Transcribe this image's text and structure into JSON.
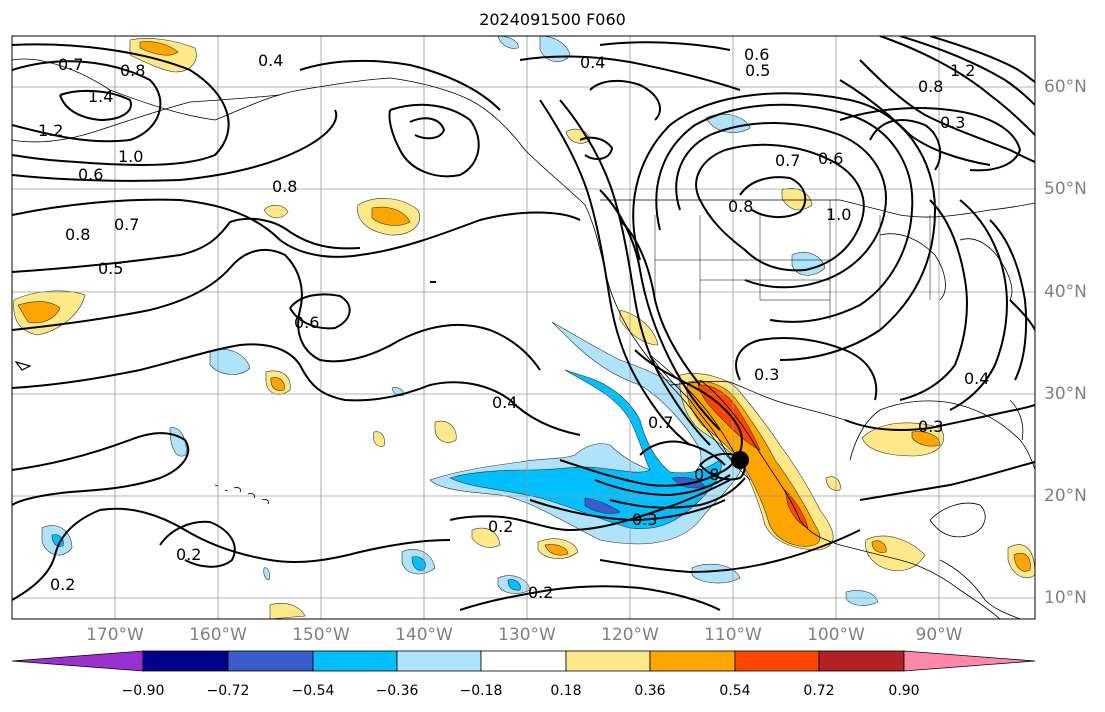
{
  "title": "2024091500 F060",
  "map": {
    "lon_labels": [
      "170°W",
      "160°W",
      "150°W",
      "140°W",
      "130°W",
      "120°W",
      "110°W",
      "100°W",
      "90°W"
    ],
    "lat_labels": [
      "60°N",
      "50°N",
      "40°N",
      "30°N",
      "20°N",
      "10°N"
    ],
    "contour_labels": [
      "0.7",
      "0.8",
      "1.4",
      "1.2",
      "1.0",
      "0.6",
      "0.8",
      "0.7",
      "0.5",
      "0.4",
      "0.8",
      "0.6",
      "0.4",
      "0.5",
      "0.6",
      "0.7",
      "0.8",
      "1.0",
      "1.2",
      "0.8",
      "0.6",
      "0.3",
      "0.4",
      "0.7",
      "0.8",
      "0.3",
      "0.2",
      "0.2",
      "0.2",
      "0.3",
      "0.4",
      "0.3",
      "0.2"
    ],
    "marker": "storm center point"
  },
  "colorbar": {
    "ticks": [
      "−0.90",
      "−0.72",
      "−0.54",
      "−0.36",
      "−0.18",
      "0.18",
      "0.36",
      "0.54",
      "0.72",
      "0.90"
    ],
    "colors": [
      "#9b30d0",
      "#00008b",
      "#3a5ccc",
      "#00bfff",
      "#aee3fb",
      "#ffffff",
      "#ffe888",
      "#ffa500",
      "#ff4500",
      "#b22222",
      "#ff88aa"
    ]
  }
}
